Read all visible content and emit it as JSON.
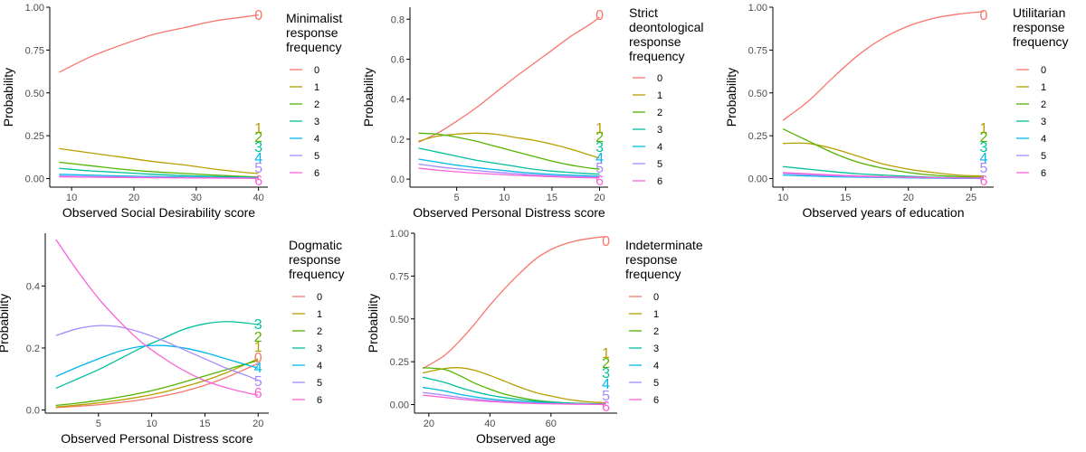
{
  "colors": {
    "0": "#F8766D",
    "1": "#B79F00",
    "2": "#53B400",
    "3": "#00BF9D",
    "4": "#00B6EB",
    "5": "#A58AFF",
    "6": "#FB61D7",
    "axis": "#000000",
    "tick_text": "#4d4d4d"
  },
  "chart_data": [
    {
      "type": "line",
      "title": "",
      "xlabel": "Observed Social Desirability score",
      "ylabel": "Probability",
      "legend_title": "Minimalist\nresponse\nfrequency",
      "legend_position": "right",
      "grid": false,
      "xlim": [
        6.5,
        41.5
      ],
      "ylim": [
        -0.05,
        1.0
      ],
      "xticks": [
        10,
        20,
        30,
        40
      ],
      "yticks": [
        0.0,
        0.25,
        0.5,
        0.75,
        1.0
      ],
      "ytick_labels": [
        "0.00",
        "0.25",
        "0.50",
        "0.75",
        "1.00"
      ],
      "x": [
        8,
        13,
        18,
        23,
        28,
        33,
        38,
        40
      ],
      "series": [
        {
          "name": "0",
          "values": [
            0.62,
            0.71,
            0.78,
            0.84,
            0.88,
            0.92,
            0.945,
            0.955
          ]
        },
        {
          "name": "1",
          "values": [
            0.175,
            0.15,
            0.125,
            0.1,
            0.08,
            0.055,
            0.035,
            0.03
          ]
        },
        {
          "name": "2",
          "values": [
            0.095,
            0.075,
            0.055,
            0.04,
            0.03,
            0.02,
            0.012,
            0.01
          ]
        },
        {
          "name": "3",
          "values": [
            0.06,
            0.045,
            0.035,
            0.025,
            0.017,
            0.012,
            0.008,
            0.006
          ]
        },
        {
          "name": "4",
          "values": [
            0.025,
            0.02,
            0.015,
            0.012,
            0.009,
            0.006,
            0.004,
            0.003
          ]
        },
        {
          "name": "5",
          "values": [
            0.015,
            0.012,
            0.01,
            0.008,
            0.006,
            0.004,
            0.003,
            0.002
          ]
        },
        {
          "name": "6",
          "values": [
            0.01,
            0.008,
            0.006,
            0.005,
            0.004,
            0.003,
            0.002,
            0.001
          ]
        }
      ],
      "end_labels": [
        "0",
        "1",
        "2",
        "3",
        "4",
        "5",
        "6"
      ]
    },
    {
      "type": "line",
      "title": "",
      "xlabel": "Observed Personal Distress score",
      "ylabel": "Probability",
      "legend_title": "Strict\ndeontological\nresponse\nfrequency",
      "legend_position": "right",
      "grid": false,
      "xlim": [
        0.1,
        20.9
      ],
      "ylim": [
        -0.04,
        0.86
      ],
      "xticks": [
        5,
        10,
        15,
        20
      ],
      "yticks": [
        0.0,
        0.2,
        0.4,
        0.6,
        0.8
      ],
      "ytick_labels": [
        "0.0",
        "0.2",
        "0.4",
        "0.6",
        "0.8"
      ],
      "x": [
        1,
        3,
        5,
        7,
        9,
        11,
        13,
        15,
        17,
        19,
        20
      ],
      "series": [
        {
          "name": "0",
          "values": [
            0.185,
            0.23,
            0.29,
            0.355,
            0.43,
            0.505,
            0.575,
            0.645,
            0.715,
            0.775,
            0.81
          ]
        },
        {
          "name": "1",
          "values": [
            0.19,
            0.215,
            0.225,
            0.23,
            0.225,
            0.21,
            0.195,
            0.175,
            0.15,
            0.12,
            0.105
          ]
        },
        {
          "name": "2",
          "values": [
            0.23,
            0.225,
            0.21,
            0.19,
            0.165,
            0.14,
            0.115,
            0.09,
            0.07,
            0.055,
            0.05
          ]
        },
        {
          "name": "3",
          "values": [
            0.155,
            0.135,
            0.115,
            0.095,
            0.08,
            0.065,
            0.05,
            0.04,
            0.033,
            0.027,
            0.025
          ]
        },
        {
          "name": "4",
          "values": [
            0.1,
            0.085,
            0.07,
            0.058,
            0.048,
            0.038,
            0.03,
            0.024,
            0.02,
            0.016,
            0.015
          ]
        },
        {
          "name": "5",
          "values": [
            0.075,
            0.062,
            0.052,
            0.043,
            0.035,
            0.028,
            0.022,
            0.017,
            0.013,
            0.011,
            0.01
          ]
        },
        {
          "name": "6",
          "values": [
            0.055,
            0.045,
            0.037,
            0.03,
            0.025,
            0.02,
            0.016,
            0.012,
            0.009,
            0.007,
            0.006
          ]
        }
      ],
      "end_labels": [
        "0",
        "1",
        "2",
        "3",
        "4",
        "5",
        "6"
      ]
    },
    {
      "type": "line",
      "title": "",
      "xlabel": "Observed years of education",
      "ylabel": "Probability",
      "legend_title": "Utilitarian\nresponse\nfrequency",
      "legend_position": "right",
      "grid": false,
      "xlim": [
        9.2,
        26.8
      ],
      "ylim": [
        -0.05,
        1.0
      ],
      "xticks": [
        10,
        15,
        20,
        25
      ],
      "yticks": [
        0.0,
        0.25,
        0.5,
        0.75,
        1.0
      ],
      "ytick_labels": [
        "0.00",
        "0.25",
        "0.50",
        "0.75",
        "1.00"
      ],
      "x": [
        10,
        12,
        14,
        16,
        18,
        20,
        22,
        24,
        26
      ],
      "series": [
        {
          "name": "0",
          "values": [
            0.34,
            0.45,
            0.59,
            0.72,
            0.82,
            0.89,
            0.935,
            0.96,
            0.975
          ]
        },
        {
          "name": "1",
          "values": [
            0.205,
            0.205,
            0.175,
            0.13,
            0.085,
            0.055,
            0.035,
            0.02,
            0.015
          ]
        },
        {
          "name": "2",
          "values": [
            0.29,
            0.22,
            0.15,
            0.095,
            0.06,
            0.035,
            0.02,
            0.012,
            0.008
          ]
        },
        {
          "name": "3",
          "values": [
            0.07,
            0.055,
            0.04,
            0.028,
            0.02,
            0.013,
            0.008,
            0.005,
            0.003
          ]
        },
        {
          "name": "4",
          "values": [
            0.02,
            0.015,
            0.011,
            0.008,
            0.006,
            0.004,
            0.002,
            0.001,
            0.001
          ]
        },
        {
          "name": "5",
          "values": [
            0.03,
            0.022,
            0.016,
            0.011,
            0.008,
            0.006,
            0.004,
            0.003,
            0.002
          ]
        },
        {
          "name": "6",
          "values": [
            0.035,
            0.028,
            0.021,
            0.015,
            0.011,
            0.008,
            0.006,
            0.004,
            0.003
          ]
        }
      ],
      "end_labels": [
        "0",
        "1",
        "2",
        "3",
        "4",
        "5",
        "6"
      ]
    },
    {
      "type": "line",
      "title": "",
      "xlabel": "Observed Personal Distress score",
      "ylabel": "Probability",
      "legend_title": "Dogmatic\nresponse\nfrequency",
      "legend_position": "right",
      "grid": false,
      "xlim": [
        0.0,
        21.0
      ],
      "ylim": [
        -0.01,
        0.57
      ],
      "xticks": [
        5,
        10,
        15,
        20
      ],
      "yticks": [
        0.0,
        0.2,
        0.4
      ],
      "ytick_labels": [
        "0.0",
        "0.2",
        "0.4"
      ],
      "x": [
        1,
        3,
        5,
        7,
        9,
        11,
        13,
        15,
        17,
        19,
        20
      ],
      "series": [
        {
          "name": "0",
          "values": [
            0.008,
            0.012,
            0.017,
            0.024,
            0.033,
            0.045,
            0.06,
            0.08,
            0.105,
            0.135,
            0.15
          ]
        },
        {
          "name": "1",
          "values": [
            0.01,
            0.016,
            0.023,
            0.032,
            0.043,
            0.057,
            0.075,
            0.095,
            0.12,
            0.15,
            0.165
          ]
        },
        {
          "name": "2",
          "values": [
            0.015,
            0.022,
            0.031,
            0.042,
            0.055,
            0.071,
            0.09,
            0.11,
            0.13,
            0.15,
            0.16
          ]
        },
        {
          "name": "3",
          "values": [
            0.07,
            0.1,
            0.13,
            0.165,
            0.2,
            0.23,
            0.26,
            0.278,
            0.285,
            0.28,
            0.275
          ]
        },
        {
          "name": "4",
          "values": [
            0.108,
            0.138,
            0.165,
            0.19,
            0.205,
            0.208,
            0.2,
            0.185,
            0.165,
            0.145,
            0.135
          ]
        },
        {
          "name": "5",
          "values": [
            0.24,
            0.262,
            0.272,
            0.268,
            0.25,
            0.225,
            0.195,
            0.165,
            0.135,
            0.11,
            0.095
          ]
        },
        {
          "name": "6",
          "values": [
            0.55,
            0.45,
            0.36,
            0.285,
            0.22,
            0.17,
            0.128,
            0.095,
            0.072,
            0.055,
            0.048
          ]
        }
      ],
      "end_labels": [
        "3",
        "2",
        "1",
        "0",
        "4",
        "5",
        "6"
      ]
    },
    {
      "type": "line",
      "title": "",
      "xlabel": "Observed age",
      "ylabel": "Probability",
      "legend_title": "Indeterminate\nresponse\nfrequency",
      "legend_position": "right",
      "grid": false,
      "xlim": [
        15.3,
        81.7
      ],
      "ylim": [
        -0.05,
        1.0
      ],
      "xticks": [
        20,
        40,
        60
      ],
      "yticks": [
        0.0,
        0.25,
        0.5,
        0.75,
        1.0
      ],
      "ytick_labels": [
        "0.00",
        "0.25",
        "0.50",
        "0.75",
        "1.00"
      ],
      "x": [
        18,
        25,
        30,
        35,
        40,
        45,
        50,
        55,
        60,
        65,
        70,
        75,
        78
      ],
      "series": [
        {
          "name": "0",
          "values": [
            0.21,
            0.285,
            0.37,
            0.47,
            0.58,
            0.68,
            0.77,
            0.85,
            0.905,
            0.94,
            0.962,
            0.975,
            0.98
          ]
        },
        {
          "name": "1",
          "values": [
            0.185,
            0.21,
            0.215,
            0.2,
            0.17,
            0.135,
            0.1,
            0.07,
            0.05,
            0.032,
            0.02,
            0.013,
            0.01
          ]
        },
        {
          "name": "2",
          "values": [
            0.215,
            0.205,
            0.17,
            0.125,
            0.09,
            0.06,
            0.04,
            0.025,
            0.016,
            0.01,
            0.007,
            0.005,
            0.004
          ]
        },
        {
          "name": "3",
          "values": [
            0.16,
            0.13,
            0.1,
            0.075,
            0.055,
            0.04,
            0.028,
            0.019,
            0.013,
            0.009,
            0.006,
            0.004,
            0.003
          ]
        },
        {
          "name": "4",
          "values": [
            0.1,
            0.08,
            0.06,
            0.045,
            0.033,
            0.024,
            0.017,
            0.012,
            0.008,
            0.005,
            0.004,
            0.003,
            0.002
          ]
        },
        {
          "name": "5",
          "values": [
            0.07,
            0.055,
            0.042,
            0.032,
            0.024,
            0.017,
            0.012,
            0.008,
            0.006,
            0.004,
            0.003,
            0.002,
            0.002
          ]
        },
        {
          "name": "6",
          "values": [
            0.055,
            0.042,
            0.032,
            0.024,
            0.018,
            0.013,
            0.009,
            0.006,
            0.004,
            0.003,
            0.002,
            0.001,
            0.001
          ]
        }
      ],
      "end_labels": [
        "0",
        "1",
        "2",
        "3",
        "4",
        "5",
        "6"
      ]
    }
  ]
}
